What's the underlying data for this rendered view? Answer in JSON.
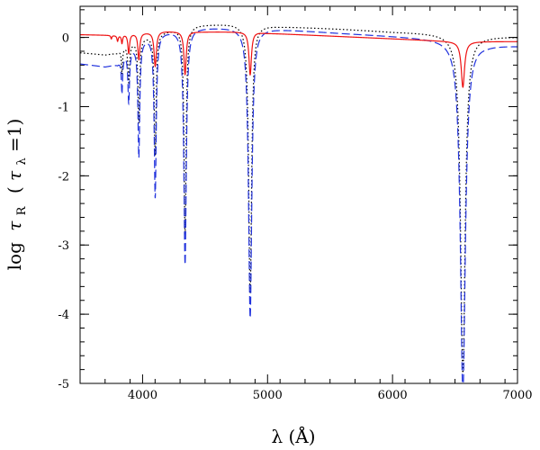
{
  "chart_data": {
    "type": "line",
    "title": "",
    "xlabel": "λ  (Å)",
    "ylabel": "log τR (τλ=1)",
    "ylabel_parts": {
      "prefix": "log",
      "tau": "τ",
      "sub_R": "R",
      "open": "(",
      "tau2": "τ",
      "sub_lambda": "λ",
      "close": "=1)"
    },
    "xlim": [
      3500,
      7000
    ],
    "ylim": [
      -5,
      0.45
    ],
    "xticks_major": [
      4000,
      5000,
      6000,
      7000
    ],
    "xticks_major_labels": [
      "4000",
      "5000",
      "6000",
      "7000"
    ],
    "xtick_minor_step": 200,
    "yticks_major": [
      0,
      -1,
      -2,
      -3,
      -4,
      -5
    ],
    "yticks_major_labels": [
      "0",
      "-1",
      "-2",
      "-3",
      "-4",
      "-5"
    ],
    "ytick_minor_step": 0.2,
    "series": [
      {
        "name": "solid",
        "color": "#ee1111",
        "dash": "solid",
        "continuum": [
          [
            3500,
            0.04
          ],
          [
            3800,
            0.03
          ],
          [
            3870,
            0.05
          ],
          [
            4150,
            0.09
          ],
          [
            4500,
            0.08
          ],
          [
            4900,
            0.08
          ],
          [
            5000,
            0.06
          ],
          [
            5500,
            0.02
          ],
          [
            6000,
            -0.02
          ],
          [
            6500,
            -0.06
          ],
          [
            6700,
            -0.06
          ],
          [
            7000,
            -0.06
          ]
        ],
        "lines": [
          [
            3750,
            -0.05,
            5
          ],
          [
            3800,
            -0.08,
            6
          ],
          [
            3835,
            -0.12,
            6
          ],
          [
            3889,
            -0.28,
            8
          ],
          [
            3970,
            -0.38,
            9
          ],
          [
            4101,
            -0.5,
            11
          ],
          [
            4340,
            -0.62,
            11
          ],
          [
            4861,
            -0.62,
            12
          ],
          [
            6563,
            -0.66,
            16
          ]
        ]
      },
      {
        "name": "dotted",
        "color": "#000000",
        "dash": "dotted",
        "continuum": [
          [
            3500,
            -0.22
          ],
          [
            3700,
            -0.25
          ],
          [
            3800,
            -0.22
          ],
          [
            3870,
            -0.1
          ],
          [
            4000,
            0.0
          ],
          [
            4150,
            0.08
          ],
          [
            4400,
            0.18
          ],
          [
            4700,
            0.2
          ],
          [
            4860,
            0.2
          ],
          [
            5100,
            0.16
          ],
          [
            5600,
            0.12
          ],
          [
            6000,
            0.08
          ],
          [
            6400,
            0.06
          ],
          [
            6560,
            0.05
          ],
          [
            6750,
            0.02
          ],
          [
            7000,
            0.01
          ]
        ],
        "lines": [
          [
            3835,
            -0.35,
            5
          ],
          [
            3889,
            -0.55,
            8
          ],
          [
            3970,
            -1.2,
            8
          ],
          [
            4101,
            -1.75,
            9
          ],
          [
            4340,
            -3.0,
            10
          ],
          [
            4861,
            -3.9,
            14
          ],
          [
            6563,
            -4.9,
            22
          ]
        ]
      },
      {
        "name": "dashed",
        "color": "#2233dd",
        "dash": "dashed",
        "continuum": [
          [
            3500,
            -0.38
          ],
          [
            3700,
            -0.42
          ],
          [
            3800,
            -0.38
          ],
          [
            3870,
            -0.2
          ],
          [
            4000,
            -0.02
          ],
          [
            4150,
            0.08
          ],
          [
            4400,
            0.14
          ],
          [
            4700,
            0.15
          ],
          [
            4860,
            0.15
          ],
          [
            5100,
            0.12
          ],
          [
            5600,
            0.06
          ],
          [
            6000,
            0.02
          ],
          [
            6400,
            -0.02
          ],
          [
            6560,
            -0.04
          ],
          [
            6750,
            -0.1
          ],
          [
            7000,
            -0.12
          ]
        ],
        "lines": [
          [
            3835,
            -0.5,
            6
          ],
          [
            3889,
            -0.75,
            8
          ],
          [
            3970,
            -1.65,
            9
          ],
          [
            4101,
            -2.35,
            10
          ],
          [
            4340,
            -3.4,
            12
          ],
          [
            4861,
            -4.2,
            16
          ],
          [
            6563,
            -5.1,
            24
          ]
        ]
      }
    ]
  }
}
